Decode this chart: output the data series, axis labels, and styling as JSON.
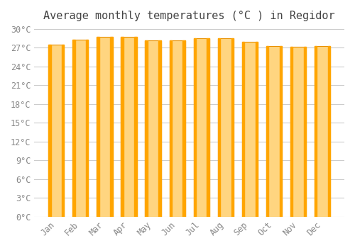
{
  "title": "Average monthly temperatures (°C ) in Regidor",
  "months": [
    "Jan",
    "Feb",
    "Mar",
    "Apr",
    "May",
    "Jun",
    "Jul",
    "Aug",
    "Sep",
    "Oct",
    "Nov",
    "Dec"
  ],
  "values": [
    27.5,
    28.3,
    28.8,
    28.7,
    28.2,
    28.2,
    28.5,
    28.5,
    28.0,
    27.3,
    27.2,
    27.3
  ],
  "bar_color_top": "#FFA500",
  "bar_color_bottom": "#FFD580",
  "bar_edge_color": "#E89000",
  "background_color": "#FFFFFF",
  "plot_bg_color": "#FFFFFF",
  "grid_color": "#CCCCCC",
  "ylim": [
    0,
    30
  ],
  "yticks": [
    0,
    3,
    6,
    9,
    12,
    15,
    18,
    21,
    24,
    27,
    30
  ],
  "ytick_labels": [
    "0°C",
    "3°C",
    "6°C",
    "9°C",
    "12°C",
    "15°C",
    "18°C",
    "21°C",
    "24°C",
    "27°C",
    "30°C"
  ],
  "title_fontsize": 11,
  "tick_fontsize": 8.5,
  "title_color": "#444444",
  "tick_color": "#888888"
}
